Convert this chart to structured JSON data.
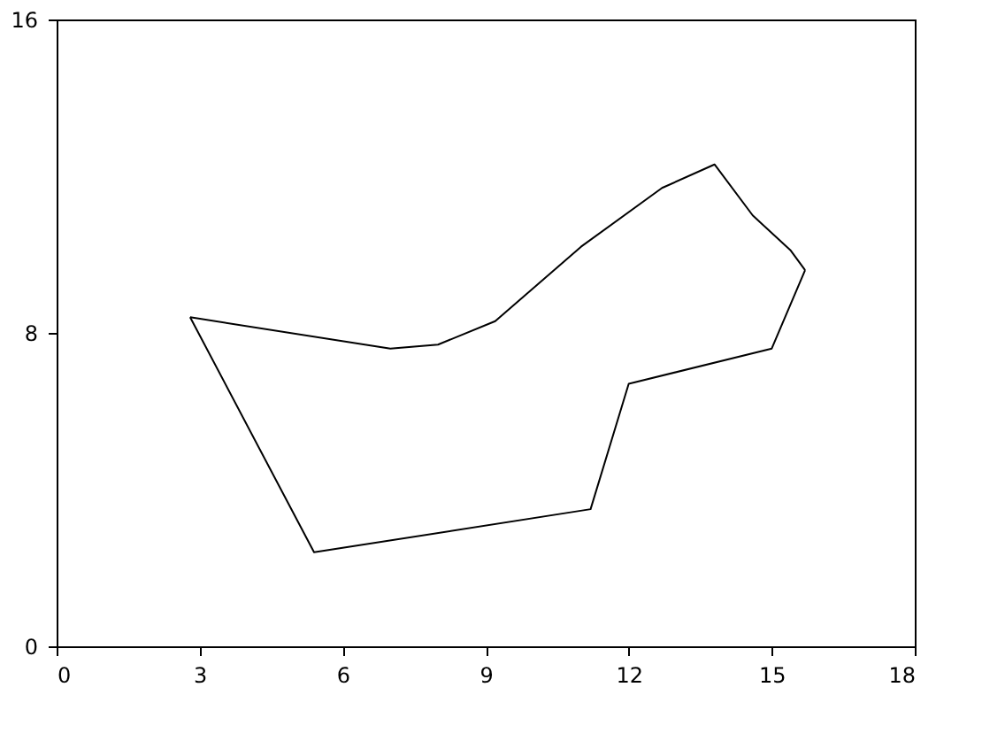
{
  "chart_data": {
    "type": "line",
    "series": [
      {
        "color": "#000000",
        "x": [
          2.8,
          7.0,
          8.0,
          9.2,
          11.0,
          12.7,
          13.8,
          14.6,
          15.4,
          15.7
        ],
        "values": [
          8.4,
          7.6,
          7.7,
          8.3,
          10.2,
          11.7,
          12.3,
          11.0,
          10.1,
          9.6
        ]
      },
      {
        "color": "#000000",
        "x": [
          2.8,
          5.4,
          11.2,
          12.0,
          15.0,
          15.7
        ],
        "values": [
          8.4,
          2.4,
          3.5,
          6.7,
          7.6,
          9.6
        ]
      }
    ],
    "xlim": [
      0,
      18
    ],
    "xticks": [
      0,
      3,
      6,
      9,
      12,
      15,
      18
    ],
    "ylim": [
      0,
      16
    ],
    "yticks": [
      0,
      8,
      16
    ],
    "grid": false,
    "marker": "none",
    "line_style": "solid"
  }
}
